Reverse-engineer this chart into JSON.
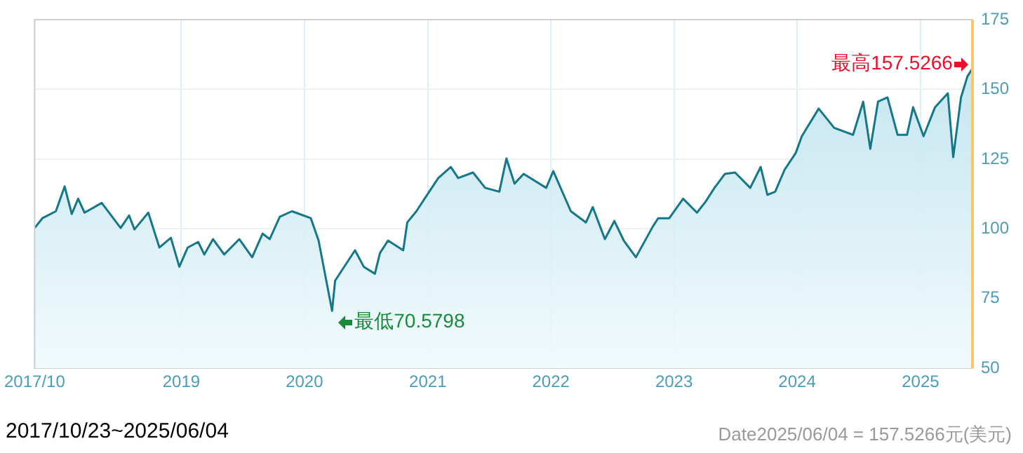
{
  "chart_data": {
    "type": "area",
    "color": "#14788a",
    "x": [
      "2017-10-23",
      "2017-11-15",
      "2017-12-25",
      "2018-01-20",
      "2018-02-10",
      "2018-03-01",
      "2018-03-20",
      "2018-05-10",
      "2018-07-05",
      "2018-07-30",
      "2018-08-15",
      "2018-09-25",
      "2018-10-28",
      "2018-12-01",
      "2018-12-26",
      "2019-01-20",
      "2019-02-20",
      "2019-03-10",
      "2019-04-05",
      "2019-05-08",
      "2019-06-22",
      "2019-07-30",
      "2019-08-30",
      "2019-09-20",
      "2019-10-20",
      "2019-11-25",
      "2020-01-20",
      "2020-02-12",
      "2020-03-23",
      "2020-04-01",
      "2020-05-30",
      "2020-06-25",
      "2020-07-28",
      "2020-08-12",
      "2020-09-05",
      "2020-10-20",
      "2020-11-01",
      "2020-11-28",
      "2021-01-05",
      "2021-02-01",
      "2021-03-10",
      "2021-04-01",
      "2021-05-15",
      "2021-06-20",
      "2021-08-01",
      "2021-08-22",
      "2021-09-15",
      "2021-10-12",
      "2021-12-18",
      "2022-01-08",
      "2022-03-01",
      "2022-04-15",
      "2022-05-05",
      "2022-06-10",
      "2022-07-08",
      "2022-08-05",
      "2022-09-10",
      "2022-10-30",
      "2022-11-15",
      "2022-12-18",
      "2023-01-28",
      "2023-03-10",
      "2023-04-05",
      "2023-05-01",
      "2023-06-01",
      "2023-07-01",
      "2023-08-15",
      "2023-09-15",
      "2023-10-05",
      "2023-10-28",
      "2023-11-25",
      "2023-12-28",
      "2024-01-15",
      "2024-03-05",
      "2024-04-20",
      "2024-06-15",
      "2024-07-15",
      "2024-08-05",
      "2024-08-28",
      "2024-09-25",
      "2024-10-25",
      "2024-11-22",
      "2024-12-10",
      "2025-01-10",
      "2025-02-13",
      "2025-03-23",
      "2025-04-08",
      "2025-05-01",
      "2025-05-20",
      "2025-06-04"
    ],
    "values": [
      100.3,
      103.8,
      106.3,
      115.2,
      105.3,
      110.8,
      105.8,
      109.3,
      100.3,
      104.8,
      99.8,
      105.8,
      93.3,
      96.8,
      86.4,
      93.3,
      95.3,
      90.8,
      96.3,
      90.8,
      96.3,
      89.8,
      98.3,
      96.3,
      104.3,
      106.3,
      103.8,
      95.8,
      70.5798,
      81.4,
      92.3,
      86.4,
      83.9,
      91.3,
      95.8,
      92.3,
      102.3,
      106.3,
      113.3,
      118.2,
      122.2,
      118.2,
      120.2,
      114.7,
      113.3,
      125.2,
      116.2,
      119.7,
      114.7,
      120.7,
      106.3,
      102.3,
      107.8,
      96.3,
      102.8,
      95.8,
      89.8,
      100.8,
      103.8,
      103.8,
      110.8,
      105.8,
      109.8,
      114.7,
      119.7,
      120.2,
      114.7,
      122.2,
      112.2,
      113.3,
      121.2,
      127.2,
      133.2,
      143.1,
      136.2,
      133.7,
      145.6,
      128.7,
      145.6,
      147.1,
      133.7,
      133.7,
      143.6,
      133.2,
      143.6,
      148.6,
      125.7,
      147.1,
      154.6,
      157.5266
    ],
    "xlim": [
      "2017-10-23",
      "2025-06-04"
    ],
    "xticks": [
      {
        "value": "2017-10-23",
        "label": "2017/10"
      },
      "2019",
      "2020",
      "2021",
      "2022",
      "2023",
      "2024",
      "2025"
    ],
    "ylim": [
      50,
      175
    ],
    "yticks": [
      50,
      75,
      100,
      125,
      150,
      175
    ],
    "grid": true,
    "annotations": [
      {
        "text": "最低70.5798",
        "x": "2020-03-23",
        "y": 70.5798
      },
      {
        "text": "最高157.5266",
        "x": "2025-06-04",
        "y": 157.5266
      },
      "2017/10/23~2025/06/04",
      "Date2025/06/04 =  157.5266元(美元)"
    ]
  }
}
